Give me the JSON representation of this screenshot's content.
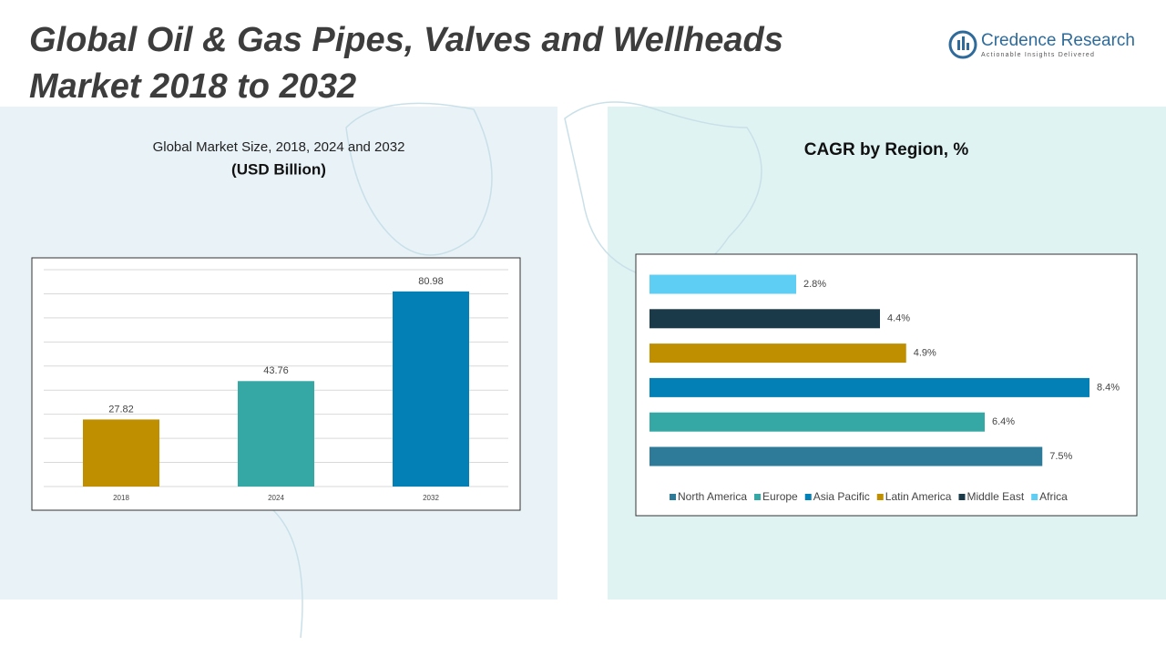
{
  "header": {
    "title_line1": "Global Oil & Gas Pipes, Valves and Wellheads",
    "title_line2": "Market 2018 to 2032"
  },
  "brand": {
    "name": "Credence Research",
    "tagline": "Actionable Insights Delivered"
  },
  "chart_data": [
    {
      "type": "bar",
      "title": "Global Market Size, 2018, 2024 and 2032",
      "subtitle": "(USD Billion)",
      "categories": [
        "2018",
        "2024",
        "2032"
      ],
      "values": [
        27.82,
        43.76,
        80.98
      ],
      "colors": [
        "#bf8f00",
        "#35a8a6",
        "#0380b5"
      ],
      "ylim": [
        0,
        90
      ],
      "yticks": [
        0,
        10,
        20,
        30,
        40,
        50,
        60,
        70,
        80,
        90
      ],
      "grid": true,
      "show_tick_labels": false
    },
    {
      "type": "hbar",
      "title": "CAGR by Region, %",
      "categories": [
        "North America",
        "Europe",
        "Asia Pacific",
        "Latin America",
        "Middle East",
        "Africa"
      ],
      "values": [
        7.5,
        6.4,
        8.4,
        4.9,
        4.4,
        2.8
      ],
      "value_labels": [
        "7.5%",
        "6.4%",
        "8.4%",
        "4.9%",
        "4.4%",
        "2.8%"
      ],
      "colors": [
        "#2e7a99",
        "#35a8a6",
        "#0380b5",
        "#bf8f00",
        "#1a3a4a",
        "#5fcef5"
      ],
      "xlim": [
        0,
        9
      ],
      "legend": "bottom"
    }
  ]
}
